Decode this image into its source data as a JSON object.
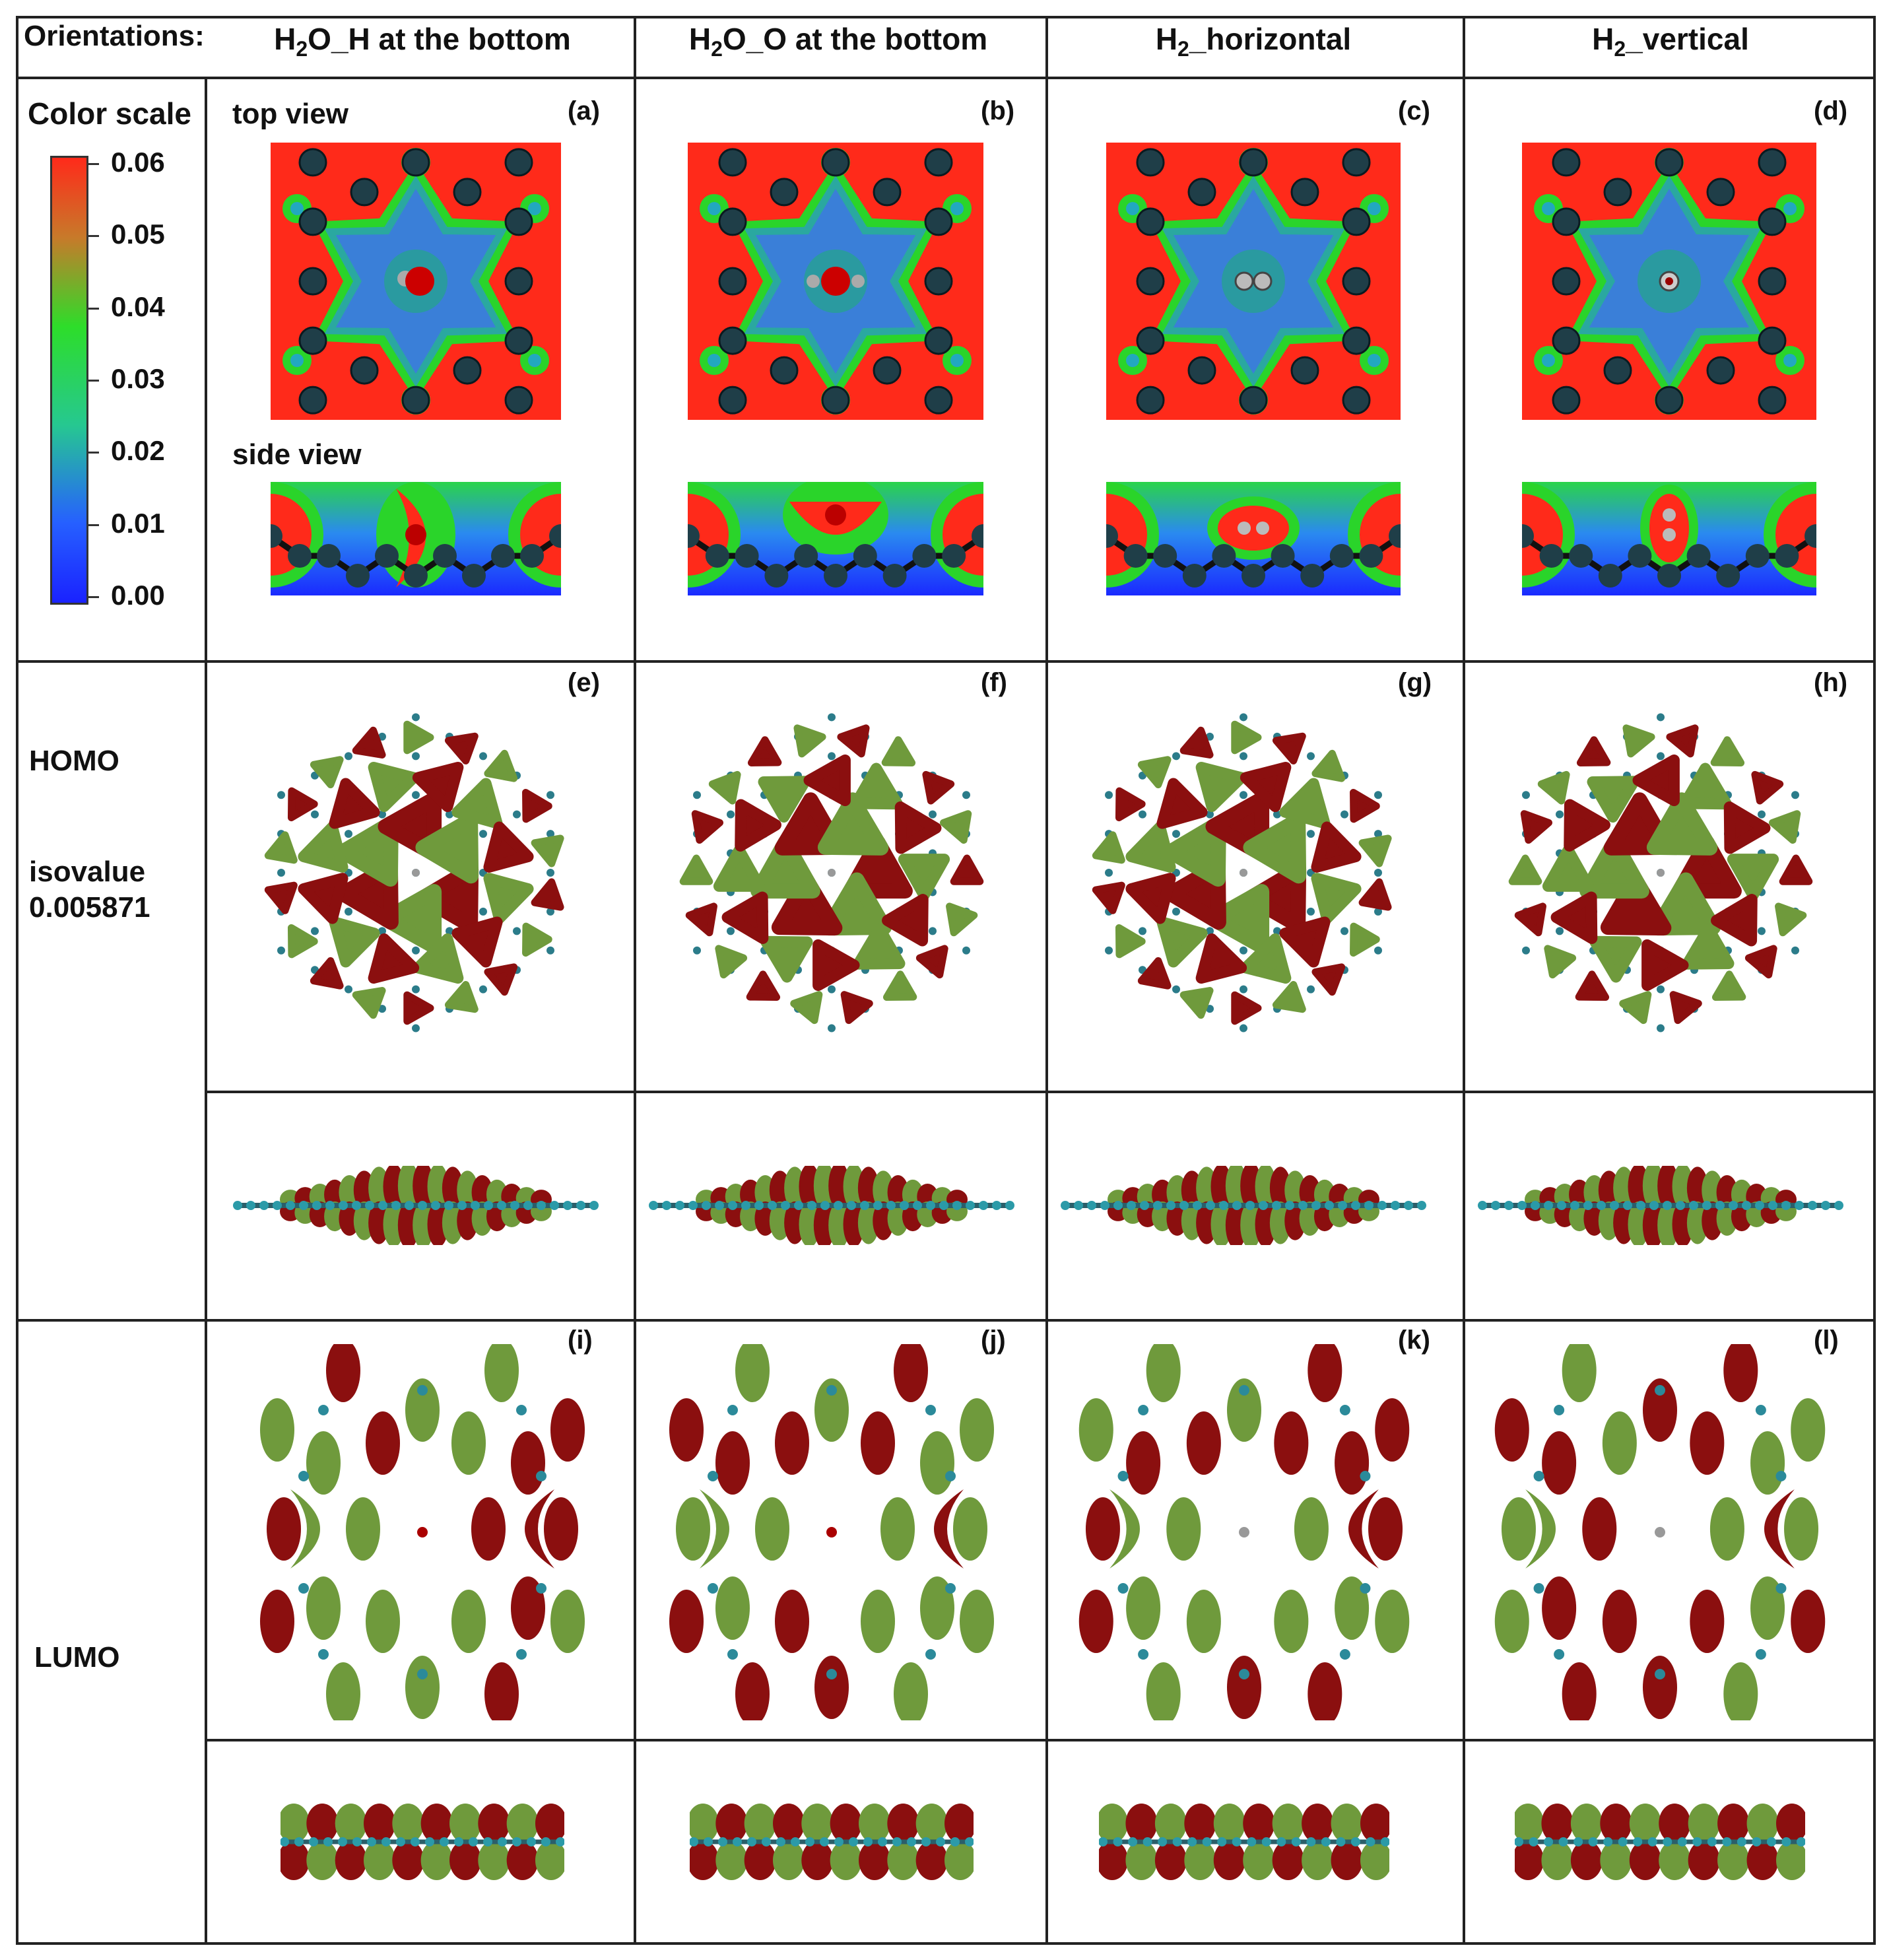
{
  "header": {
    "orientations_label": "Orientations:",
    "columns": [
      {
        "main": "H",
        "sub": "2",
        "rest": "O_H at the bottom"
      },
      {
        "main": "H",
        "sub": "2",
        "rest": "O_O at the bottom"
      },
      {
        "main": "H",
        "sub": "2",
        "rest": "_horizontal"
      },
      {
        "main": "H",
        "sub": "2",
        "rest": "_vertical"
      }
    ]
  },
  "color_scale": {
    "title": "Color scale",
    "ticks": [
      "0.06",
      "0.05",
      "0.04",
      "0.03",
      "0.02",
      "0.01",
      "0.00"
    ],
    "colors": {
      "high": "#ff2a1a",
      "mid": "#22dd22",
      "low": "#1a2aff"
    }
  },
  "views": {
    "top": "top view",
    "side": "side view"
  },
  "rows": {
    "homo": {
      "label": "HOMO",
      "iso_label": "isovalue",
      "iso_value": "0.005871"
    },
    "lumo": {
      "label": "LUMO"
    }
  },
  "panels": [
    "(a)",
    "(b)",
    "(c)",
    "(d)",
    "(e)",
    "(f)",
    "(g)",
    "(h)",
    "(i)",
    "(j)",
    "(k)",
    "(l)"
  ],
  "colors": {
    "orbital_red": "#8b0f0f",
    "orbital_green": "#6f9a3c",
    "bond": "#2b5f6a",
    "atom": "#1f3e48",
    "density_red": "#ff2a1a",
    "density_green": "#2ad42a",
    "density_blue": "#2a55ff"
  }
}
